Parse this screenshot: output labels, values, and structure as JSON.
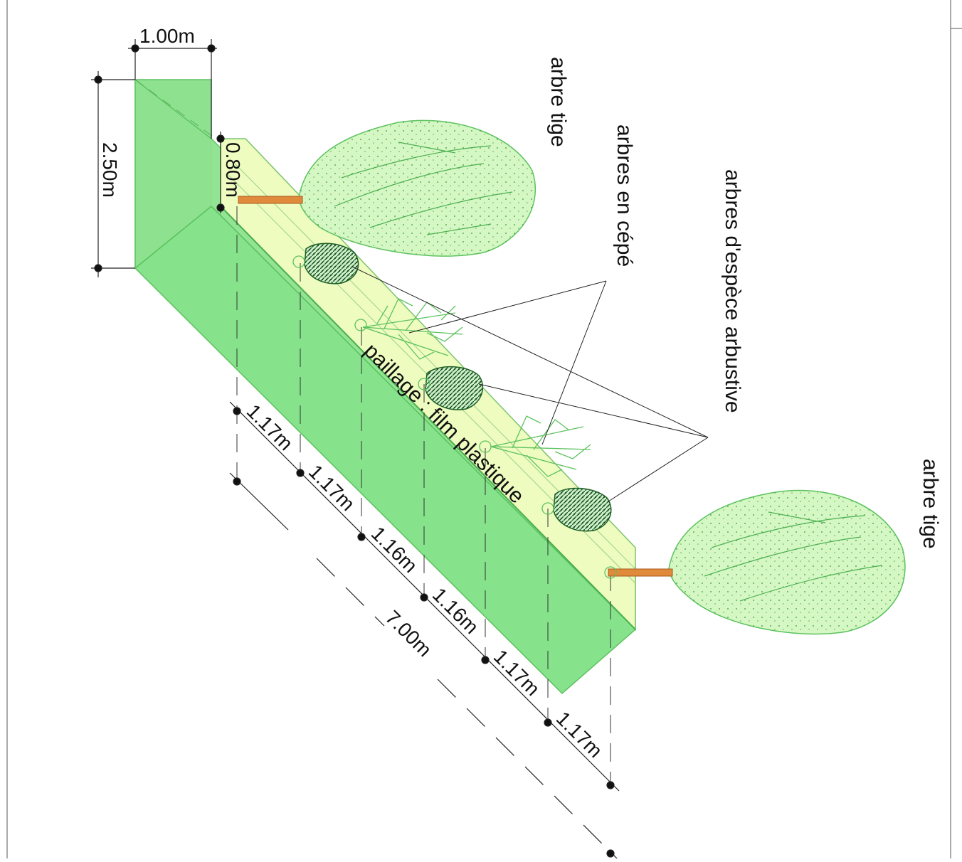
{
  "dimensions": {
    "width_top": "1.00m",
    "height": "2.50m",
    "height_inner": "0.80m",
    "spacings": [
      "1.17m",
      "1.17m",
      "1.16m",
      "1.16m",
      "1.17m",
      "1.17m"
    ],
    "total_length": "7.00m"
  },
  "labels": {
    "tree_top": "arbre tige",
    "coppice": "arbres en cépé",
    "shrub": "arbres d'espèce arbustive",
    "tree_bottom": "arbre tige",
    "mulch": "paillage : film plastique"
  },
  "colors": {
    "slope_dark": "#86e38c",
    "slope_mid": "#9ee89c",
    "strip": "#eefcc0",
    "crown": "#d4f7c4",
    "shrub": "#2e8b3a",
    "trunk": "#e08a3c",
    "line": "#222222"
  }
}
